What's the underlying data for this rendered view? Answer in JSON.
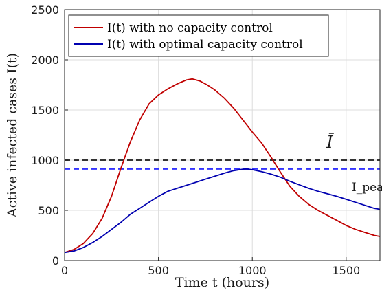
{
  "chart_data": {
    "type": "line",
    "xlabel": "Time t (hours)",
    "ylabel": "Active infected cases I(t)",
    "xlim": [
      0,
      1680
    ],
    "ylim": [
      0,
      2500
    ],
    "xticks": [
      0,
      500,
      1000,
      1500
    ],
    "yticks": [
      0,
      500,
      1000,
      1500,
      2000,
      2500
    ],
    "grid": true,
    "legend_position": "top-left",
    "series": [
      {
        "name": "I(t) with no capacity control",
        "color": "#c00000",
        "x": [
          0,
          50,
          100,
          150,
          200,
          250,
          300,
          350,
          400,
          450,
          500,
          550,
          600,
          650,
          680,
          720,
          760,
          800,
          850,
          900,
          950,
          1000,
          1050,
          1100,
          1150,
          1200,
          1250,
          1300,
          1350,
          1400,
          1450,
          1500,
          1550,
          1600,
          1650,
          1680
        ],
        "y": [
          80,
          110,
          170,
          270,
          420,
          640,
          920,
          1180,
          1400,
          1560,
          1650,
          1710,
          1760,
          1800,
          1810,
          1790,
          1750,
          1700,
          1620,
          1520,
          1400,
          1280,
          1170,
          1030,
          880,
          740,
          640,
          560,
          500,
          450,
          400,
          350,
          310,
          280,
          250,
          240
        ]
      },
      {
        "name": "I(t) with optimal capacity control",
        "color": "#0000b0",
        "x": [
          0,
          50,
          100,
          150,
          200,
          250,
          300,
          350,
          400,
          450,
          500,
          550,
          600,
          650,
          700,
          750,
          800,
          850,
          900,
          950,
          970,
          1000,
          1050,
          1100,
          1150,
          1200,
          1250,
          1300,
          1350,
          1400,
          1450,
          1500,
          1550,
          1600,
          1650,
          1680
        ],
        "y": [
          80,
          95,
          130,
          180,
          240,
          310,
          380,
          460,
          520,
          580,
          640,
          690,
          720,
          750,
          780,
          810,
          840,
          870,
          895,
          910,
          912,
          905,
          885,
          860,
          830,
          790,
          755,
          720,
          690,
          665,
          640,
          610,
          580,
          550,
          520,
          510
        ]
      }
    ],
    "reference_lines": [
      {
        "label": "Ī",
        "y": 1000,
        "color": "#333333",
        "style": "dashed"
      },
      {
        "label": "I_peak",
        "y": 912,
        "color": "#3333ff",
        "style": "dashed"
      }
    ]
  }
}
